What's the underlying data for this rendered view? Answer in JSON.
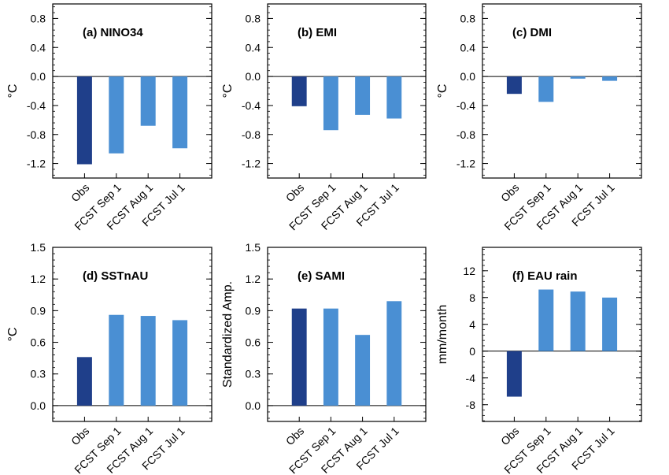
{
  "chart_data": [
    {
      "type": "bar",
      "title": "(a) NINO34",
      "ylabel": "°C",
      "categories": [
        "Obs",
        "FCST Sep 1",
        "FCST Aug 1",
        "FCST Jul 1"
      ],
      "values": [
        -1.21,
        -1.06,
        -0.68,
        -0.99
      ],
      "ylim": [
        -1.4,
        1.0
      ],
      "yticks": [
        "0.8",
        "0.4",
        "0.0",
        "-0.4",
        "-0.8",
        "-1.2"
      ],
      "ytick_values": [
        0.8,
        0.4,
        0.0,
        -0.4,
        -0.8,
        -1.2
      ],
      "colors": [
        "#1f3f8a",
        "#4a8fd3",
        "#4a8fd3",
        "#4a8fd3"
      ]
    },
    {
      "type": "bar",
      "title": "(b) EMI",
      "ylabel": "°C",
      "categories": [
        "Obs",
        "FCST Sep 1",
        "FCST Aug 1",
        "FCST Jul 1"
      ],
      "values": [
        -0.41,
        -0.74,
        -0.53,
        -0.58
      ],
      "ylim": [
        -1.4,
        1.0
      ],
      "yticks": [
        "0.8",
        "0.4",
        "0.0",
        "-0.4",
        "-0.8",
        "-1.2"
      ],
      "ytick_values": [
        0.8,
        0.4,
        0.0,
        -0.4,
        -0.8,
        -1.2
      ],
      "colors": [
        "#1f3f8a",
        "#4a8fd3",
        "#4a8fd3",
        "#4a8fd3"
      ]
    },
    {
      "type": "bar",
      "title": "(c) DMI",
      "ylabel": "°C",
      "categories": [
        "Obs",
        "FCST Sep 1",
        "FCST Aug 1",
        "FCST Jul 1"
      ],
      "values": [
        -0.24,
        -0.35,
        -0.03,
        -0.06
      ],
      "ylim": [
        -1.4,
        1.0
      ],
      "yticks": [
        "0.8",
        "0.4",
        "0.0",
        "-0.4",
        "-0.8",
        "-1.2"
      ],
      "ytick_values": [
        0.8,
        0.4,
        0.0,
        -0.4,
        -0.8,
        -1.2
      ],
      "colors": [
        "#1f3f8a",
        "#4a8fd3",
        "#4a8fd3",
        "#4a8fd3"
      ]
    },
    {
      "type": "bar",
      "title": "(d) SSTnAU",
      "ylabel": "°C",
      "categories": [
        "Obs",
        "FCST Sep 1",
        "FCST Aug 1",
        "FCST Jul 1"
      ],
      "values": [
        0.46,
        0.86,
        0.85,
        0.81
      ],
      "ylim": [
        -0.15,
        1.5
      ],
      "yticks": [
        "1.5",
        "1.2",
        "0.9",
        "0.6",
        "0.3",
        "0.0"
      ],
      "ytick_values": [
        1.5,
        1.2,
        0.9,
        0.6,
        0.3,
        0.0
      ],
      "colors": [
        "#1f3f8a",
        "#4a8fd3",
        "#4a8fd3",
        "#4a8fd3"
      ]
    },
    {
      "type": "bar",
      "title": "(e) SAMI",
      "ylabel": "Standardized Amp.",
      "categories": [
        "Obs",
        "FCST Sep 1",
        "FCST Aug 1",
        "FCST Jul 1"
      ],
      "values": [
        0.92,
        0.92,
        0.67,
        0.99
      ],
      "ylim": [
        -0.15,
        1.5
      ],
      "yticks": [
        "1.5",
        "1.2",
        "0.9",
        "0.6",
        "0.3",
        "0.0"
      ],
      "ytick_values": [
        1.5,
        1.2,
        0.9,
        0.6,
        0.3,
        0.0
      ],
      "colors": [
        "#1f3f8a",
        "#4a8fd3",
        "#4a8fd3",
        "#4a8fd3"
      ]
    },
    {
      "type": "bar",
      "title": "(f) EAU rain",
      "ylabel": "mm/month",
      "categories": [
        "Obs",
        "FCST Sep 1",
        "FCST Aug 1",
        "FCST Jul 1"
      ],
      "values": [
        -6.8,
        9.2,
        8.9,
        8.0
      ],
      "ylim": [
        -10.5,
        15.5
      ],
      "yticks": [
        "12",
        "8",
        "4",
        "0",
        "-4",
        "-8"
      ],
      "ytick_values": [
        12,
        8,
        4,
        0,
        -4,
        -8
      ],
      "colors": [
        "#1f3f8a",
        "#4a8fd3",
        "#4a8fd3",
        "#4a8fd3"
      ]
    }
  ]
}
